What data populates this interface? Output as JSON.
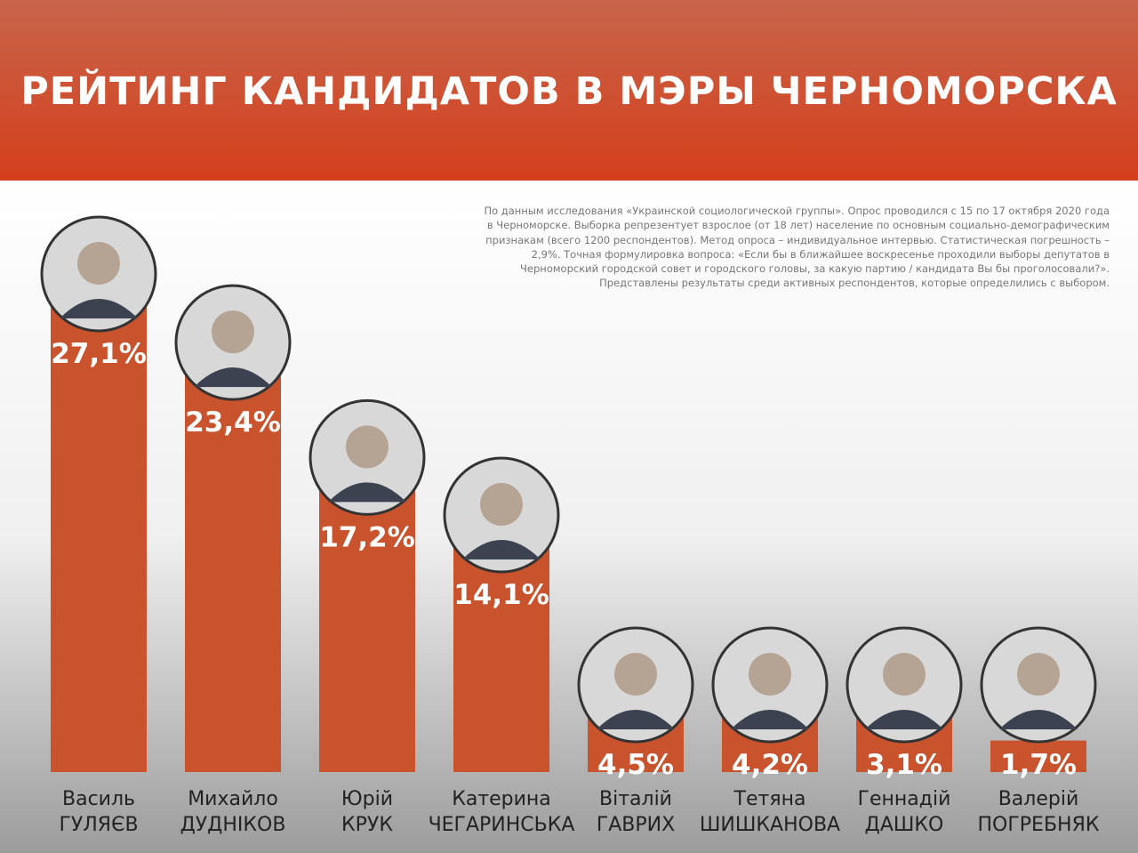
{
  "chart_data": {
    "type": "bar",
    "title": "РЕЙТИНГ КАНДИДАТОВ В МЭРЫ ЧЕРНОМОРСКА",
    "note": [
      "По данным исследования «Украинской социологической группы». Опрос проводился с 15 по 17 октября 2020 года",
      "в Черноморске. Выборка репрезентует взрослое (от 18 лет) население по основным социально-демографическим",
      "признакам (всего 1200 респондентов). Метод опроса – индивидуальное интервью. Статистическая погрешность –",
      "2,9%. Точная формулировка вопроса: «Если бы в ближайшее воскресенье проходили выборы депутатов в",
      "Черноморский городской совет и городского головы, за какую партию / кандидата Вы бы проголосовали?».",
      "Представлены результаты среди активных респондентов, которые определились с выбором."
    ],
    "categories": [
      "Василь\nГУЛЯЄВ",
      "Михайло\nДУДНІКОВ",
      "Юрій\nКРУК",
      "Катерина\nЧЕГАРИНСЬКА",
      "Віталій\nГАВРИХ",
      "Тетяна\nШИШКАНОВА",
      "Геннадій\nДАШКО",
      "Валерій\nПОГРЕБНЯК"
    ],
    "values": [
      27.1,
      23.4,
      17.2,
      14.1,
      4.5,
      4.2,
      3.1,
      1.7
    ],
    "value_labels": [
      "27,1%",
      "23,4%",
      "17,2%",
      "14,1%",
      "4,5%",
      "4,2%",
      "3,1%",
      "1,7%"
    ],
    "color": "#c9532d"
  }
}
